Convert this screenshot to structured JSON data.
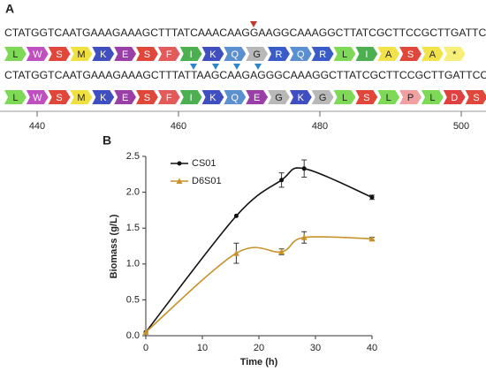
{
  "panel_a": {
    "label": "A",
    "sequence_1": "CTATGGTCAATGAAAGAAAGCTTTATCAAACAAGGAAGGCAAAGGCTTATCGCTTCCGCTTGATTCG",
    "translation_1": [
      "L",
      "W",
      "S",
      "M",
      "K",
      "E",
      "S",
      "F",
      "I",
      "K",
      "Q",
      "G",
      "R",
      "Q",
      "R",
      "L",
      "I",
      "A",
      "S",
      "A",
      "*"
    ],
    "sequence_2": "CTATGGTCAATGAAAGAAAGCTTTATTAAGCAAGAGGGCAAAGGCTTATCGCTTCCGCTTGATTCCT",
    "translation_2": [
      "L",
      "W",
      "S",
      "M",
      "K",
      "E",
      "S",
      "F",
      "I",
      "K",
      "Q",
      "E",
      "G",
      "K",
      "G",
      "L",
      "S",
      "L",
      "P",
      "L",
      "D",
      "S"
    ],
    "ruler": [
      440,
      460,
      480,
      500
    ]
  },
  "chart_data": {
    "type": "line",
    "panel_label": "B",
    "x_label": "Time (h)",
    "y_label": "Biomass (g/L)",
    "xlim": [
      0,
      40
    ],
    "xticks": [
      0,
      10,
      20,
      30,
      40
    ],
    "ylim": [
      0,
      2.5
    ],
    "yticks": [
      {
        "value": 0,
        "label": "0.0"
      },
      0.5,
      {
        "value": 1,
        "label": "1.0"
      },
      1.5,
      {
        "value": 2,
        "label": "2.0"
      },
      2.5
    ],
    "legend": "top-left",
    "series": [
      {
        "name": "CS01",
        "color": "#111111",
        "marker": "circle",
        "x": [
          0,
          16,
          24,
          28,
          40
        ],
        "values": [
          0.05,
          1.67,
          2.17,
          2.33,
          1.93
        ],
        "errors": [
          0,
          0,
          0.1,
          0.12,
          0.03
        ]
      },
      {
        "name": "D6S01",
        "color": "#c8922a",
        "marker": "triangle",
        "x": [
          0,
          16,
          24,
          28,
          40
        ],
        "values": [
          0.05,
          1.15,
          1.17,
          1.37,
          1.35
        ],
        "errors": [
          0,
          0.14,
          0.04,
          0.08,
          0.02
        ]
      }
    ]
  }
}
